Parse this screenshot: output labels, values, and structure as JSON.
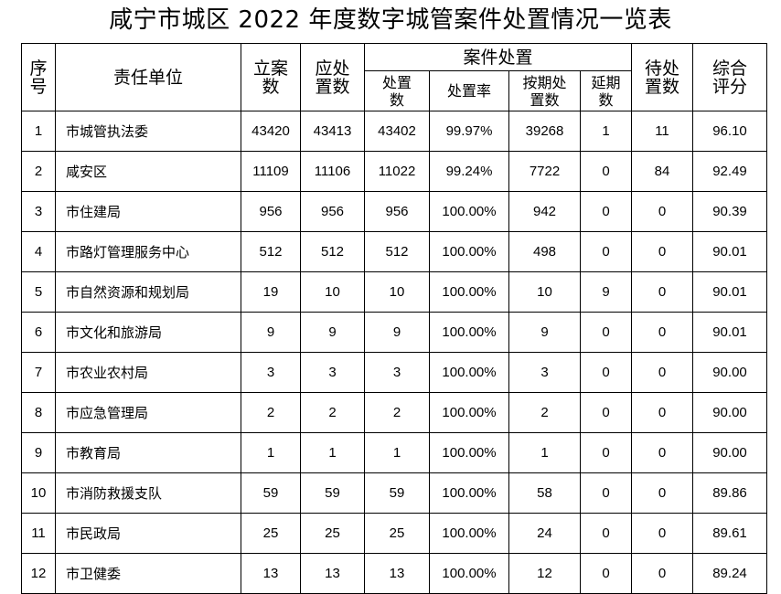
{
  "title": "咸宁市城区 2022 年度数字城管案件处置情况一览表",
  "headers": {
    "index": "序号",
    "unit": "责任单位",
    "filed": "立案数",
    "due": "应处置数",
    "group": "案件处置",
    "handled": "处置数",
    "rate": "处置率",
    "ontime": "按期处置数",
    "delayed": "延期数",
    "pending": "待处置数",
    "score": "综合评分"
  },
  "rows": [
    [
      "1",
      "市城管执法委",
      "43420",
      "43413",
      "43402",
      "99.97%",
      "39268",
      "1",
      "11",
      "96.10"
    ],
    [
      "2",
      "咸安区",
      "11109",
      "11106",
      "11022",
      "99.24%",
      "7722",
      "0",
      "84",
      "92.49"
    ],
    [
      "3",
      "市住建局",
      "956",
      "956",
      "956",
      "100.00%",
      "942",
      "0",
      "0",
      "90.39"
    ],
    [
      "4",
      "市路灯管理服务中心",
      "512",
      "512",
      "512",
      "100.00%",
      "498",
      "0",
      "0",
      "90.01"
    ],
    [
      "5",
      "市自然资源和规划局",
      "19",
      "10",
      "10",
      "100.00%",
      "10",
      "9",
      "0",
      "90.01"
    ],
    [
      "6",
      "市文化和旅游局",
      "9",
      "9",
      "9",
      "100.00%",
      "9",
      "0",
      "0",
      "90.01"
    ],
    [
      "7",
      "市农业农村局",
      "3",
      "3",
      "3",
      "100.00%",
      "3",
      "0",
      "0",
      "90.00"
    ],
    [
      "8",
      "市应急管理局",
      "2",
      "2",
      "2",
      "100.00%",
      "2",
      "0",
      "0",
      "90.00"
    ],
    [
      "9",
      "市教育局",
      "1",
      "1",
      "1",
      "100.00%",
      "1",
      "0",
      "0",
      "90.00"
    ],
    [
      "10",
      "市消防救援支队",
      "59",
      "59",
      "59",
      "100.00%",
      "58",
      "0",
      "0",
      "89.86"
    ],
    [
      "11",
      "市民政局",
      "25",
      "25",
      "25",
      "100.00%",
      "24",
      "0",
      "0",
      "89.61"
    ],
    [
      "12",
      "市卫健委",
      "13",
      "13",
      "13",
      "100.00%",
      "12",
      "0",
      "0",
      "89.24"
    ]
  ]
}
